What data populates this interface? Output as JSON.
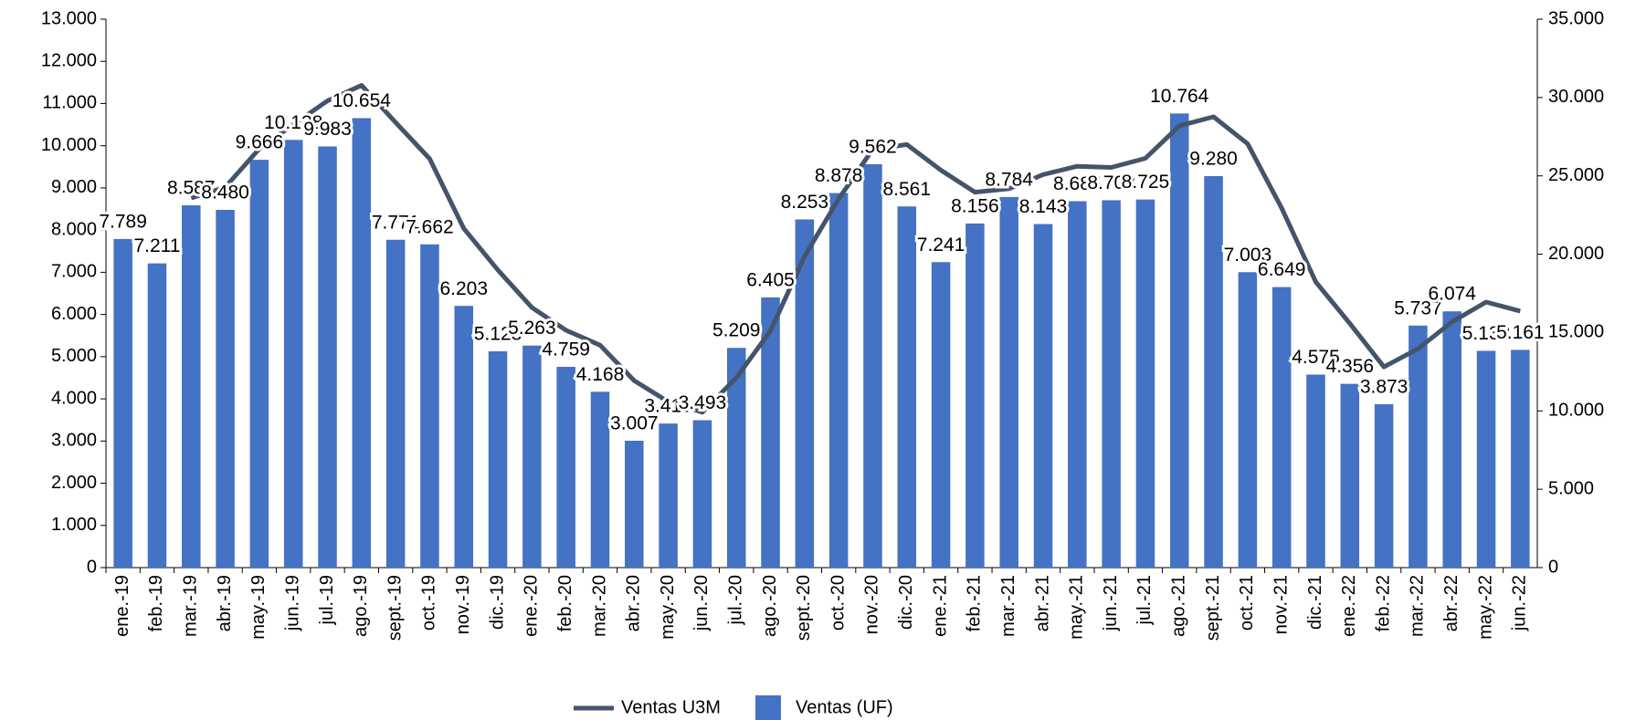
{
  "chart_data": {
    "type": "combo",
    "categories": [
      "ene.-19",
      "feb.-19",
      "mar.-19",
      "abr.-19",
      "may.-19",
      "jun.-19",
      "jul.-19",
      "ago.-19",
      "sept.-19",
      "oct.-19",
      "nov.-19",
      "dic.-19",
      "ene.-20",
      "feb.-20",
      "mar.-20",
      "abr.-20",
      "may.-20",
      "jun.-20",
      "jul.-20",
      "ago.-20",
      "sept.-20",
      "oct.-20",
      "nov.-20",
      "dic.-20",
      "ene.-21",
      "feb.-21",
      "mar.-21",
      "abr.-21",
      "may.-21",
      "jun.-21",
      "jul.-21",
      "ago.-21",
      "sept.-21",
      "oct.-21",
      "nov.-21",
      "dic.-21",
      "ene.-22",
      "feb.-22",
      "mar.-22",
      "abr.-22",
      "may.-22",
      "jun.-22"
    ],
    "series": [
      {
        "name": "Ventas U3M",
        "type": "line",
        "axis": "y2",
        "color": "#44546a",
        "values": [
          null,
          null,
          23587,
          24278,
          26733,
          28284,
          29787,
          30775,
          28408,
          26087,
          21636,
          18993,
          16594,
          15150,
          14190,
          11934,
          10590,
          9915,
          12117,
          15107,
          19867,
          23536,
          26693,
          27001,
          25364,
          23958,
          24181,
          25083,
          25612,
          25536,
          26118,
          28197,
          28769,
          27047,
          22932,
          18227,
          15580,
          12804,
          13966,
          15684,
          16949,
          16373
        ]
      },
      {
        "name": "Ventas (UF)",
        "type": "bar",
        "color": "#4472c4",
        "values": [
          7789,
          7211,
          8587,
          8480,
          9666,
          10138,
          9983,
          10654,
          7771,
          7662,
          6203,
          5128,
          5263,
          4759,
          4168,
          3007,
          3415,
          3493,
          5209,
          6405,
          8253,
          8878,
          9562,
          8561,
          7241,
          8156,
          8784,
          8143,
          8685,
          8708,
          8725,
          10764,
          9280,
          7003,
          6649,
          4575,
          4356,
          3873,
          5737,
          6074,
          5138,
          5161
        ],
        "value_labels": [
          "7.789",
          "7.211",
          "8.587",
          "8.480",
          "9.666",
          "10.138",
          "9.983",
          "10.654",
          "7.771",
          "7.662",
          "6.203",
          "5.128",
          "5.263",
          "4.759",
          "4.168",
          "3.007",
          "3.415",
          "3.493",
          "5.209",
          "6.405",
          "8.253",
          "8.878",
          "9.562",
          "8.561",
          "7.241",
          "8.156",
          "8.784",
          "8.143",
          "8.685",
          "8.708",
          "8.725",
          "10.764",
          "9.280",
          "7.003",
          "6.649",
          "4.575",
          "4.356",
          "3.873",
          "5.737",
          "6.074",
          "5.138",
          "5.161"
        ]
      }
    ],
    "ylim": [
      0,
      13000
    ],
    "yticks": [
      0,
      {
        "value": 1000,
        "label": "1.000"
      },
      {
        "value": 2000,
        "label": "2.000"
      },
      {
        "value": 3000,
        "label": "3.000"
      },
      {
        "value": 4000,
        "label": "4.000"
      },
      {
        "value": 5000,
        "label": "5.000"
      },
      {
        "value": 6000,
        "label": "6.000"
      },
      {
        "value": 7000,
        "label": "7.000"
      },
      {
        "value": 8000,
        "label": "8.000"
      },
      {
        "value": 9000,
        "label": "9.000"
      },
      {
        "value": 10000,
        "label": "10.000"
      },
      {
        "value": 11000,
        "label": "11.000"
      },
      {
        "value": 12000,
        "label": "12.000"
      },
      {
        "value": 13000,
        "label": "13.000"
      }
    ],
    "y2lim": [
      0,
      35000
    ],
    "y2ticks": [
      0,
      {
        "value": 5000,
        "label": "5.000"
      },
      {
        "value": 10000,
        "label": "10.000"
      },
      {
        "value": 15000,
        "label": "15.000"
      },
      {
        "value": 20000,
        "label": "20.000"
      },
      {
        "value": 25000,
        "label": "25.000"
      },
      {
        "value": 30000,
        "label": "30.000"
      },
      {
        "value": 35000,
        "label": "35.000"
      }
    ],
    "legend": "bottom"
  }
}
